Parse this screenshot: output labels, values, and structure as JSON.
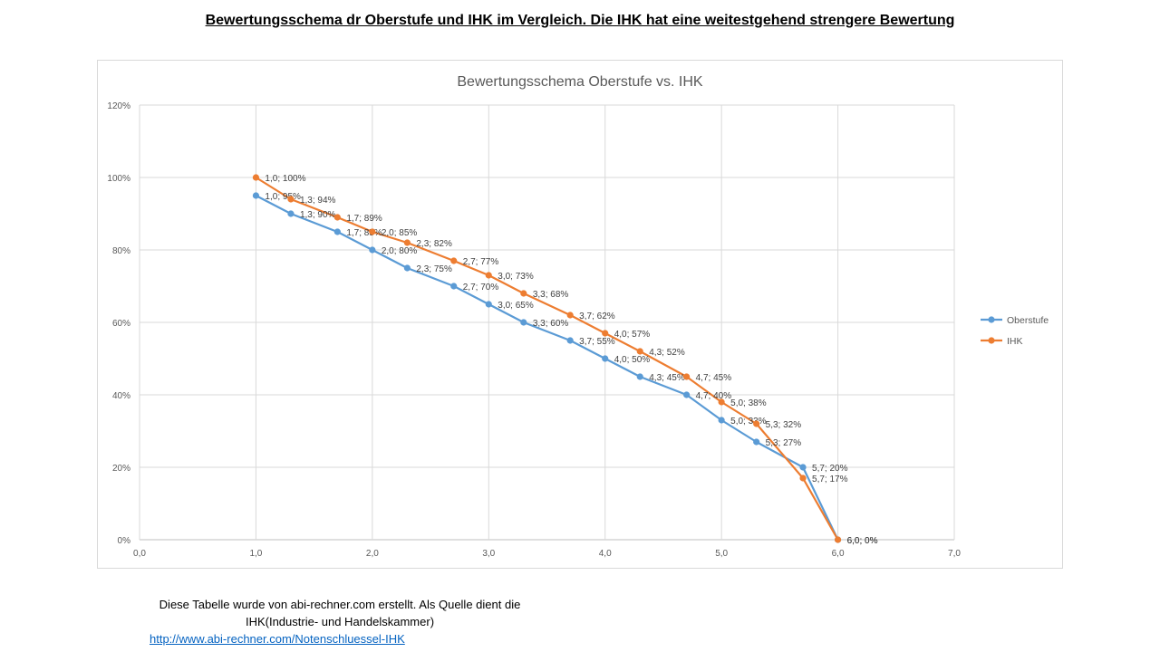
{
  "page": {
    "heading": "Bewertungsschema dr Oberstufe und IHK im Vergleich. Die IHK hat eine weitestgehend strengere Bewertung",
    "note_line1": "Diese Tabelle wurde von abi-rechner.com erstellt. Als Quelle dient die",
    "note_line2": "IHK(Industrie- und Handelskammer)",
    "link": "http://www.abi-rechner.com/Notenschluessel-IHK"
  },
  "chart_data": {
    "type": "line",
    "title": "Bewertungsschema Oberstufe vs. IHK",
    "xlim": [
      0,
      7
    ],
    "ylim": [
      0,
      1.2
    ],
    "x_ticks": [
      "0,0",
      "1,0",
      "2,0",
      "3,0",
      "4,0",
      "5,0",
      "6,0",
      "7,0"
    ],
    "y_ticks": [
      "0%",
      "20%",
      "40%",
      "60%",
      "80%",
      "100%",
      "120%"
    ],
    "grid": true,
    "legend_position": "right",
    "series": [
      {
        "name": "Oberstufe",
        "color": "#5b9bd5",
        "points": [
          {
            "x": 1.0,
            "y": 0.95,
            "label": "1,0; 95%"
          },
          {
            "x": 1.3,
            "y": 0.9,
            "label": "1,3; 90%"
          },
          {
            "x": 1.7,
            "y": 0.85,
            "label": "1,7; 85%"
          },
          {
            "x": 2.0,
            "y": 0.8,
            "label": "2,0; 80%"
          },
          {
            "x": 2.3,
            "y": 0.75,
            "label": "2,3; 75%"
          },
          {
            "x": 2.7,
            "y": 0.7,
            "label": "2,7; 70%"
          },
          {
            "x": 3.0,
            "y": 0.65,
            "label": "3,0; 65%"
          },
          {
            "x": 3.3,
            "y": 0.6,
            "label": "3,3; 60%"
          },
          {
            "x": 3.7,
            "y": 0.55,
            "label": "3,7; 55%"
          },
          {
            "x": 4.0,
            "y": 0.5,
            "label": "4,0; 50%"
          },
          {
            "x": 4.3,
            "y": 0.45,
            "label": "4,3; 45%"
          },
          {
            "x": 4.7,
            "y": 0.4,
            "label": "4,7; 40%"
          },
          {
            "x": 5.0,
            "y": 0.33,
            "label": "5,0; 33%"
          },
          {
            "x": 5.3,
            "y": 0.27,
            "label": "5,3; 27%"
          },
          {
            "x": 5.7,
            "y": 0.2,
            "label": "5,7; 20%"
          },
          {
            "x": 6.0,
            "y": 0.0,
            "label": "6,0; 0%"
          }
        ]
      },
      {
        "name": "IHK",
        "color": "#ed7d31",
        "points": [
          {
            "x": 1.0,
            "y": 1.0,
            "label": "1,0; 100%"
          },
          {
            "x": 1.3,
            "y": 0.94,
            "label": "1,3; 94%"
          },
          {
            "x": 1.7,
            "y": 0.89,
            "label": "1,7; 89%"
          },
          {
            "x": 2.0,
            "y": 0.85,
            "label": "2,0; 85%"
          },
          {
            "x": 2.3,
            "y": 0.82,
            "label": "2,3; 82%"
          },
          {
            "x": 2.7,
            "y": 0.77,
            "label": "2,7; 77%"
          },
          {
            "x": 3.0,
            "y": 0.73,
            "label": "3,0; 73%"
          },
          {
            "x": 3.3,
            "y": 0.68,
            "label": "3,3; 68%"
          },
          {
            "x": 3.7,
            "y": 0.62,
            "label": "3,7; 62%"
          },
          {
            "x": 4.0,
            "y": 0.57,
            "label": "4,0; 57%"
          },
          {
            "x": 4.3,
            "y": 0.52,
            "label": "4,3; 52%"
          },
          {
            "x": 4.7,
            "y": 0.45,
            "label": "4,7; 45%"
          },
          {
            "x": 5.0,
            "y": 0.38,
            "label": "5,0; 38%"
          },
          {
            "x": 5.3,
            "y": 0.32,
            "label": "5,3; 32%"
          },
          {
            "x": 5.7,
            "y": 0.17,
            "label": "5,7; 17%"
          },
          {
            "x": 6.0,
            "y": 0.0,
            "label": "6,0; 0%"
          }
        ]
      }
    ]
  }
}
